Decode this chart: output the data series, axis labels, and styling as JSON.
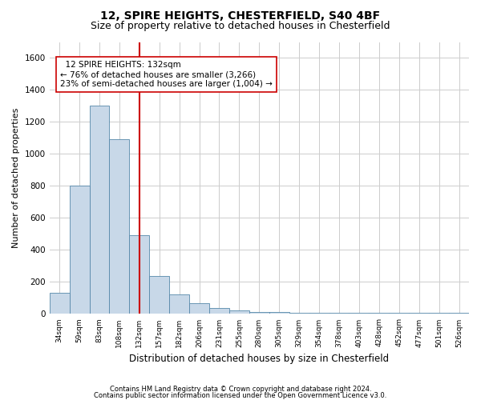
{
  "title1": "12, SPIRE HEIGHTS, CHESTERFIELD, S40 4BF",
  "title2": "Size of property relative to detached houses in Chesterfield",
  "xlabel": "Distribution of detached houses by size in Chesterfield",
  "ylabel": "Number of detached properties",
  "annotation_line1": "  12 SPIRE HEIGHTS: 132sqm  ",
  "annotation_line2": "← 76% of detached houses are smaller (3,266)",
  "annotation_line3": "23% of semi-detached houses are larger (1,004) →",
  "footer1": "Contains HM Land Registry data © Crown copyright and database right 2024.",
  "footer2": "Contains public sector information licensed under the Open Government Licence v3.0.",
  "bar_color": "#c8d8e8",
  "bar_edge_color": "#5588aa",
  "marker_color": "#cc0000",
  "marker_value": 132,
  "categories": [
    "34sqm",
    "59sqm",
    "83sqm",
    "108sqm",
    "132sqm",
    "157sqm",
    "182sqm",
    "206sqm",
    "231sqm",
    "255sqm",
    "280sqm",
    "305sqm",
    "329sqm",
    "354sqm",
    "378sqm",
    "403sqm",
    "428sqm",
    "452sqm",
    "477sqm",
    "501sqm",
    "526sqm"
  ],
  "values": [
    130,
    800,
    1300,
    1090,
    490,
    235,
    120,
    65,
    35,
    20,
    12,
    10,
    8,
    6,
    5,
    5,
    5,
    5,
    5,
    5,
    5
  ],
  "ylim": [
    0,
    1700
  ],
  "yticks": [
    0,
    200,
    400,
    600,
    800,
    1000,
    1200,
    1400,
    1600
  ],
  "marker_bin_index": 4,
  "grid_color": "#cccccc",
  "background_color": "#ffffff",
  "title1_fontsize": 10,
  "title2_fontsize": 9,
  "xlabel_fontsize": 8.5,
  "ylabel_fontsize": 8
}
